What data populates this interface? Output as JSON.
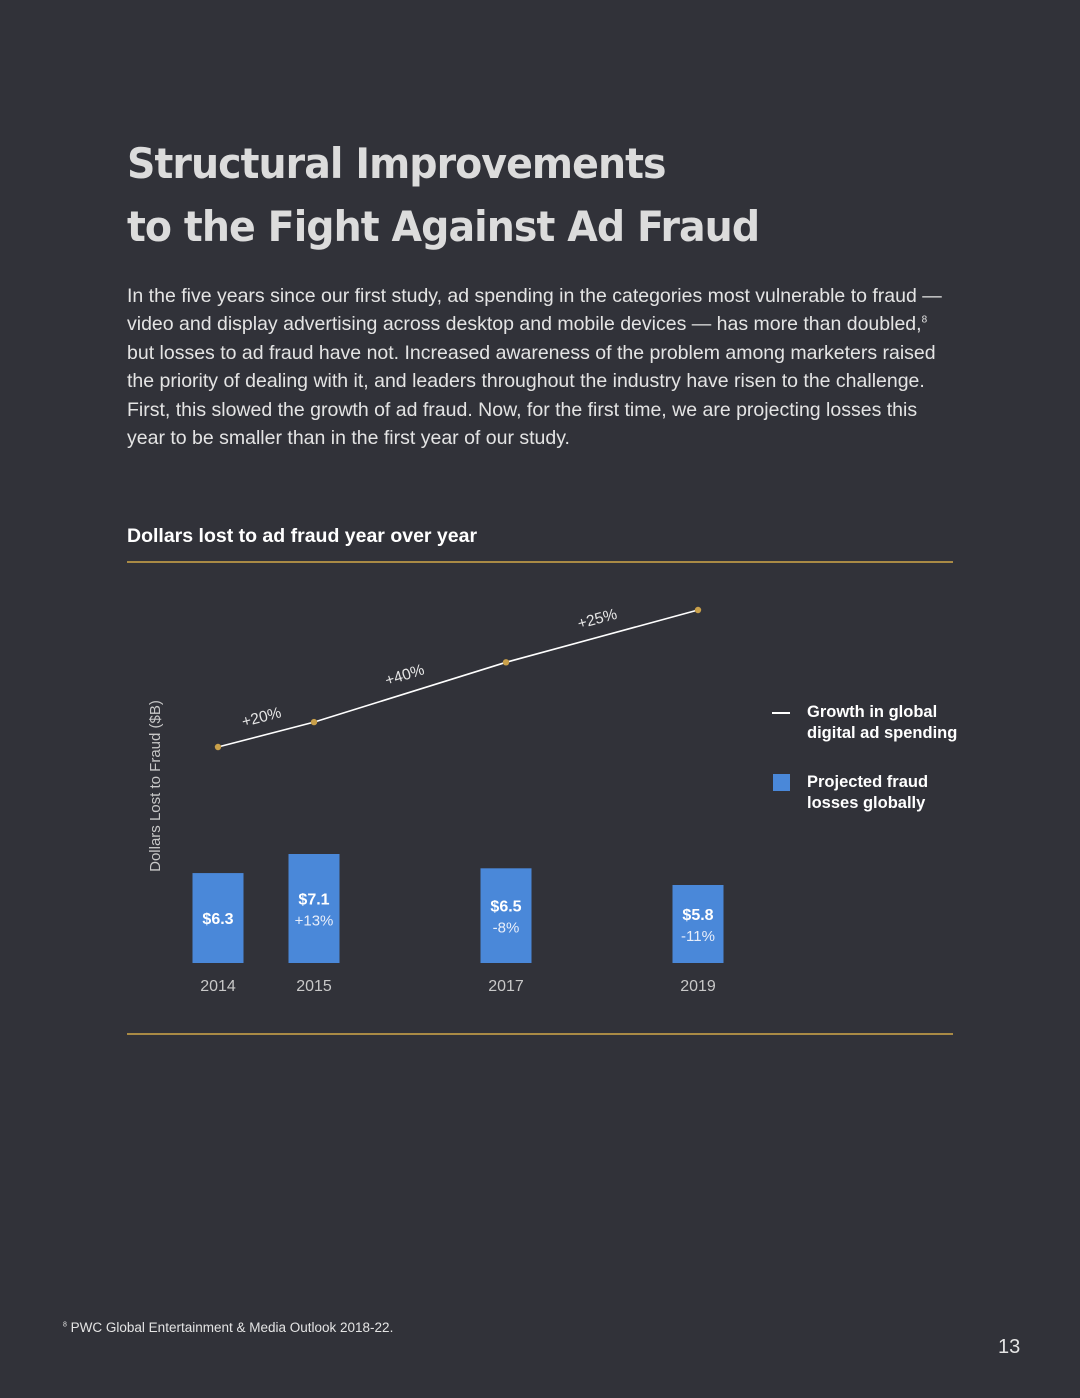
{
  "title": {
    "line1": "Structural Improvements",
    "line2": "to the Fight Against Ad Fraud"
  },
  "body": {
    "part1": "In the five years since our first study, ad spending in the categories most vulnerable to fraud — video and display advertising across desktop and mobile devices — has more than doubled,",
    "footnote_marker": "8",
    "part2": " but losses to ad fraud have not. Increased awareness of the problem among marketers raised the priority of dealing with it, and leaders throughout the industry have risen to the challenge. First, this slowed the growth of ad fraud. Now, for the first time, we are projecting losses this year to be smaller than in the first year of our study."
  },
  "chart_data": {
    "type": "bar",
    "title": "Dollars lost to ad fraud year over year",
    "ylabel": "Dollars Lost to Fraud ($B)",
    "categories": [
      "2014",
      "2015",
      "2017",
      "2019"
    ],
    "series": [
      {
        "name": "Projected fraud losses globally",
        "type": "bar",
        "values": [
          6.3,
          7.1,
          6.5,
          5.8
        ],
        "value_labels": [
          "$6.3",
          "$7.1",
          "$6.5",
          "$5.8"
        ],
        "change_labels": [
          "",
          "+13%",
          "-8%",
          "-11%"
        ],
        "color": "#4a88d9"
      },
      {
        "name": "Growth in global digital ad spending",
        "type": "line",
        "values": [
          100,
          120,
          168,
          210
        ],
        "segment_labels": [
          "+20%",
          "+40%",
          "+25%"
        ],
        "color": "#ffffff",
        "marker_color": "#c9a04a"
      }
    ],
    "legend": {
      "position": "right",
      "items": [
        {
          "label": "Growth in global digital ad spending",
          "symbol": "line"
        },
        {
          "label": "Projected fraud losses globally",
          "symbol": "square"
        }
      ]
    }
  },
  "colors": {
    "background": "#313239",
    "accent_rule": "#a98a45",
    "bar": "#4a88d9",
    "marker": "#c9a04a",
    "title_text": "#dcdcdc"
  },
  "footnote": {
    "marker": "8",
    "text": " PWC Global Entertainment & Media Outlook 2018-22."
  },
  "page_number": "13"
}
